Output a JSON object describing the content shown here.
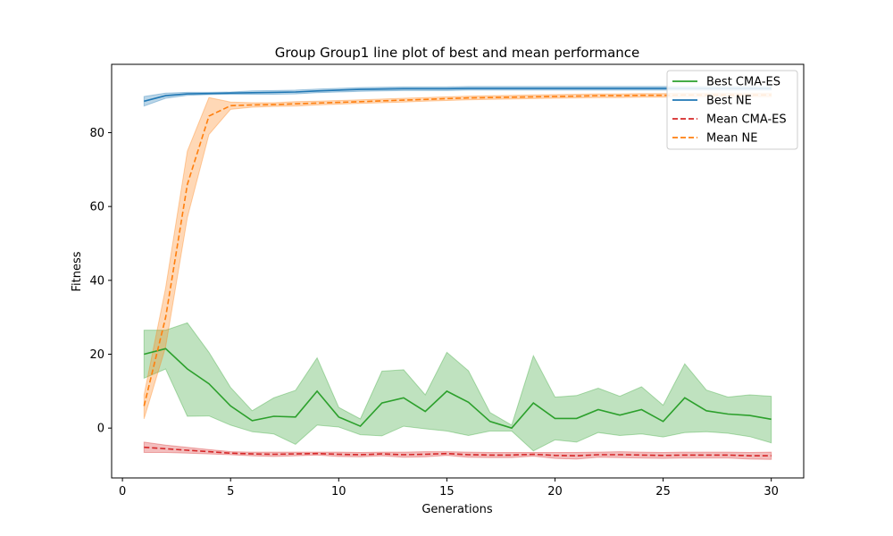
{
  "chart_data": {
    "type": "line",
    "title": "Group Group1 line plot of best and mean performance",
    "xlabel": "Generations",
    "ylabel": "Fitness",
    "xlim": [
      -0.5,
      31.5
    ],
    "ylim": [
      -13.5,
      98.5
    ],
    "xticks": [
      0,
      5,
      10,
      15,
      20,
      25,
      30
    ],
    "yticks": [
      0,
      20,
      40,
      60,
      80
    ],
    "x": [
      1,
      2,
      3,
      4,
      5,
      6,
      7,
      8,
      9,
      10,
      11,
      12,
      13,
      14,
      15,
      16,
      17,
      18,
      19,
      20,
      21,
      22,
      23,
      24,
      25,
      26,
      27,
      28,
      29,
      30
    ],
    "legend_position": "top-right",
    "grid": false,
    "series": [
      {
        "name": "Best CMA-ES",
        "color": "#2ca02c",
        "dash": false,
        "values": [
          20.0,
          21.5,
          16.0,
          12.0,
          6.0,
          2.0,
          3.2,
          3.0,
          10.0,
          3.0,
          0.5,
          6.8,
          8.2,
          4.5,
          10.0,
          7.0,
          1.8,
          0.0,
          6.8,
          2.6,
          2.6,
          5.0,
          3.5,
          5.0,
          1.8,
          8.2,
          4.7,
          3.8,
          3.4,
          2.4
        ],
        "lower": [
          13.5,
          16.0,
          3.2,
          3.3,
          0.8,
          -1.0,
          -1.6,
          -4.4,
          0.8,
          0.3,
          -1.8,
          -2.1,
          0.5,
          -0.2,
          -0.8,
          -2.0,
          -0.8,
          -0.8,
          -6.2,
          -3.2,
          -3.8,
          -1.2,
          -2.0,
          -1.6,
          -2.4,
          -1.2,
          -1.0,
          -1.4,
          -2.3,
          -4.0
        ],
        "upper": [
          26.5,
          26.5,
          28.5,
          20.5,
          11.0,
          4.7,
          8.2,
          10.2,
          19.0,
          5.6,
          2.5,
          15.4,
          15.8,
          9.0,
          20.5,
          15.5,
          4.2,
          0.8,
          19.6,
          8.4,
          8.8,
          10.8,
          8.6,
          11.2,
          6.2,
          17.4,
          10.3,
          8.4,
          9.0,
          8.6
        ]
      },
      {
        "name": "Best NE",
        "color": "#1f77b4",
        "dash": false,
        "values": [
          88.5,
          90.0,
          90.5,
          90.6,
          90.7,
          90.8,
          90.9,
          91.0,
          91.3,
          91.5,
          91.7,
          91.8,
          91.9,
          91.9,
          91.9,
          92.0,
          92.0,
          92.0,
          92.0,
          92.0,
          92.0,
          92.0,
          92.0,
          92.0,
          92.0,
          92.0,
          92.0,
          92.0,
          92.0,
          92.0
        ],
        "lower": [
          87.2,
          89.3,
          90.1,
          90.3,
          90.4,
          90.4,
          90.4,
          90.5,
          90.8,
          91.0,
          91.2,
          91.3,
          91.4,
          91.4,
          91.4,
          91.5,
          91.5,
          91.5,
          91.5,
          91.5,
          91.5,
          91.5,
          91.5,
          91.5,
          91.5,
          91.5,
          91.5,
          91.5,
          91.5,
          91.5
        ],
        "upper": [
          89.8,
          90.7,
          90.9,
          90.9,
          91.0,
          91.3,
          91.4,
          91.5,
          91.8,
          92.0,
          92.2,
          92.3,
          92.4,
          92.4,
          92.4,
          92.5,
          92.5,
          92.5,
          92.5,
          92.5,
          92.5,
          92.5,
          92.5,
          92.5,
          92.5,
          92.5,
          92.5,
          92.5,
          92.5,
          92.5
        ]
      },
      {
        "name": "Mean CMA-ES",
        "color": "#d62728",
        "dash": true,
        "values": [
          -5.2,
          -5.6,
          -6.0,
          -6.4,
          -6.8,
          -7.0,
          -7.1,
          -7.0,
          -6.9,
          -7.1,
          -7.2,
          -7.0,
          -7.2,
          -7.1,
          -6.9,
          -7.2,
          -7.3,
          -7.3,
          -7.1,
          -7.4,
          -7.5,
          -7.2,
          -7.2,
          -7.3,
          -7.4,
          -7.3,
          -7.3,
          -7.3,
          -7.5,
          -7.5
        ],
        "lower": [
          -6.6,
          -6.6,
          -6.8,
          -7.0,
          -7.2,
          -7.5,
          -7.7,
          -7.5,
          -7.3,
          -7.7,
          -7.8,
          -7.5,
          -7.9,
          -7.8,
          -7.4,
          -7.9,
          -8.0,
          -8.0,
          -7.6,
          -8.2,
          -8.4,
          -7.9,
          -8.0,
          -8.1,
          -8.2,
          -8.1,
          -8.1,
          -8.1,
          -8.4,
          -8.5
        ],
        "upper": [
          -3.8,
          -4.6,
          -5.2,
          -5.8,
          -6.4,
          -6.5,
          -6.5,
          -6.5,
          -6.5,
          -6.5,
          -6.6,
          -6.5,
          -6.5,
          -6.4,
          -6.4,
          -6.5,
          -6.6,
          -6.6,
          -6.6,
          -6.6,
          -6.6,
          -6.5,
          -6.4,
          -6.5,
          -6.6,
          -6.5,
          -6.5,
          -6.5,
          -6.6,
          -6.5
        ]
      },
      {
        "name": "Mean NE",
        "color": "#ff7f0e",
        "dash": true,
        "values": [
          6.0,
          30.0,
          66.0,
          84.5,
          87.3,
          87.5,
          87.6,
          87.8,
          88.0,
          88.2,
          88.4,
          88.6,
          88.8,
          89.0,
          89.2,
          89.4,
          89.5,
          89.6,
          89.7,
          89.8,
          89.9,
          90.0,
          90.0,
          90.1,
          90.1,
          90.2,
          90.2,
          90.2,
          90.2,
          90.2
        ],
        "lower": [
          2.5,
          22.0,
          57.0,
          79.5,
          86.3,
          86.9,
          87.1,
          87.2,
          87.5,
          87.7,
          87.9,
          88.1,
          88.3,
          88.5,
          88.7,
          88.9,
          89.0,
          89.1,
          89.2,
          89.3,
          89.4,
          89.5,
          89.5,
          89.6,
          89.6,
          89.7,
          89.7,
          89.7,
          89.7,
          89.7
        ],
        "upper": [
          9.0,
          38.0,
          75.0,
          89.5,
          88.3,
          88.1,
          88.1,
          88.4,
          88.5,
          88.7,
          88.9,
          89.1,
          89.3,
          89.5,
          89.7,
          89.9,
          90.0,
          90.1,
          90.2,
          90.3,
          90.4,
          90.5,
          90.5,
          90.6,
          90.6,
          90.7,
          90.7,
          90.7,
          90.7,
          90.7
        ]
      }
    ]
  }
}
